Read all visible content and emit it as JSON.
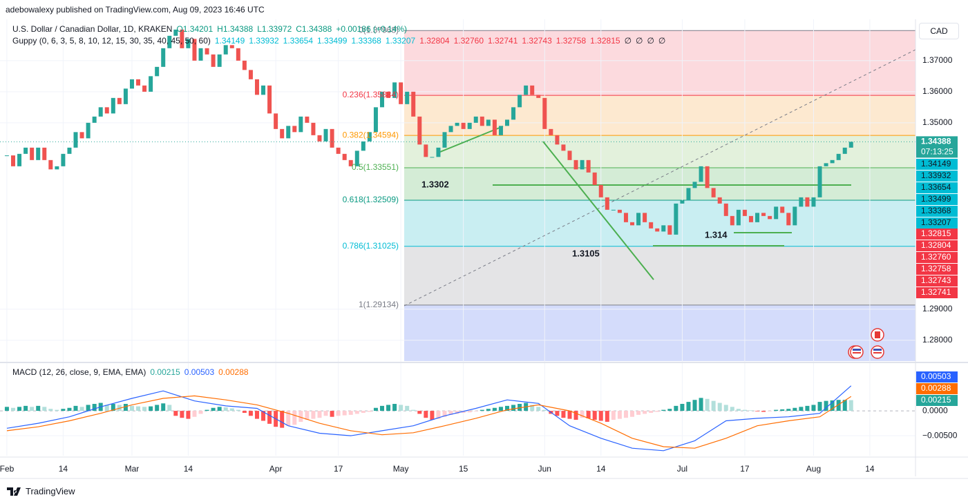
{
  "header": {
    "publisher": "adebowalexy published on TradingView.com, Aug 09, 2023 16:46 UTC"
  },
  "chart_data": {
    "type": "candlestick",
    "title": "U.S. Dollar / Canadian Dollar, 1D, KRAKEN",
    "ohlc_legend": {
      "open": "O1.34201",
      "high": "H1.34388",
      "low": "L1.33972",
      "close": "C1.34388",
      "change": "+0.00186 (+0.14%)"
    },
    "currency": "CAD",
    "countdown": "07:13:25",
    "up_color": "#26a69a",
    "down_color": "#ef5350",
    "grid": true,
    "values": [
      1.3395,
      1.336,
      1.34,
      1.342,
      1.338,
      1.342,
      1.338,
      1.335,
      1.336,
      1.34,
      1.342,
      1.347,
      1.345,
      1.35,
      1.352,
      1.355,
      1.353,
      1.358,
      1.356,
      1.361,
      1.364,
      1.362,
      1.36,
      1.365,
      1.368,
      1.374,
      1.378,
      1.38,
      1.374,
      1.377,
      1.37,
      1.374,
      1.372,
      1.368,
      1.372,
      1.375,
      1.374,
      1.37,
      1.367,
      1.364,
      1.359,
      1.362,
      1.353,
      1.348,
      1.345,
      1.349,
      1.347,
      1.352,
      1.35,
      1.346,
      1.344,
      1.348,
      1.342,
      1.34,
      1.338,
      1.336,
      1.341,
      1.344,
      1.347,
      1.355,
      1.36,
      1.358,
      1.363,
      1.356,
      1.36,
      1.352,
      1.343,
      1.339,
      1.339,
      1.342,
      1.347,
      1.349,
      1.35,
      1.348,
      1.35,
      1.352,
      1.349,
      1.351,
      1.346,
      1.349,
      1.351,
      1.355,
      1.359,
      1.362,
      1.359,
      1.358,
      1.348,
      1.346,
      1.343,
      1.341,
      1.338,
      1.335,
      1.338,
      1.334,
      1.33,
      1.326,
      1.322,
      1.322,
      1.321,
      1.318,
      1.317,
      1.321,
      1.318,
      1.316,
      1.315,
      1.317,
      1.314,
      1.324,
      1.325,
      1.329,
      1.331,
      1.336,
      1.329,
      1.326,
      1.324,
      1.32,
      1.317,
      1.322,
      1.32,
      1.318,
      1.321,
      1.32,
      1.319,
      1.323,
      1.321,
      1.317,
      1.323,
      1.326,
      1.323,
      1.326,
      1.336,
      1.337,
      1.338,
      1.34,
      1.342,
      1.34388
    ],
    "xlim": [
      -1.1,
      145.3
    ],
    "xticks": [
      {
        "value": 0,
        "label": "Feb"
      },
      {
        "value": 9,
        "label": "14"
      },
      {
        "value": 20,
        "label": "Mar"
      },
      {
        "value": 29,
        "label": "14"
      },
      {
        "value": 43,
        "label": "Apr"
      },
      {
        "value": 53,
        "label": "17"
      },
      {
        "value": 63,
        "label": "May"
      },
      {
        "value": 73,
        "label": "15"
      },
      {
        "value": 86,
        "label": "Jun"
      },
      {
        "value": 95,
        "label": "14"
      },
      {
        "value": 108,
        "label": "Jul"
      },
      {
        "value": 118,
        "label": "17"
      },
      {
        "value": 129,
        "label": "Aug"
      },
      {
        "value": 138,
        "label": "14"
      }
    ],
    "ylim": [
      1.2733,
      1.3833
    ],
    "yticks": [
      {
        "value": 1.28,
        "label": "1.28000"
      },
      {
        "value": 1.29,
        "label": "1.29000"
      },
      {
        "value": 1.35,
        "label": "1.35000"
      },
      {
        "value": 1.36,
        "label": "1.36000"
      },
      {
        "value": 1.37,
        "label": "1.37000"
      }
    ],
    "guppy": {
      "label": "Guppy (0, 6, 3, 5, 8, 10, 12, 15, 30, 35, 40, 45, 50, 60)",
      "fast": [
        "1.34149",
        "1.33932",
        "1.33654",
        "1.33499",
        "1.33368",
        "1.33207"
      ],
      "slow": [
        "1.32804",
        "1.32760",
        "1.32741",
        "1.32743",
        "1.32758",
        "1.32815"
      ],
      "na": [
        "∅",
        "∅",
        "∅",
        "∅"
      ],
      "fast_color": "#00bcd4",
      "slow_color": "#f23645"
    },
    "fib": {
      "levels": [
        {
          "value": 1.37968,
          "label": "0(1.37968)"
        },
        {
          "value": 1.35884,
          "label": "0.236(1.35884)"
        },
        {
          "value": 1.34594,
          "label": "0.382(1.34594)"
        },
        {
          "value": 1.33551,
          "label": "0.5(1.33551)"
        },
        {
          "value": 1.32509,
          "label": "0.618(1.32509)"
        },
        {
          "value": 1.31025,
          "label": "0.786(1.31025)"
        },
        {
          "value": 1.29134,
          "label": "1(1.29134)"
        }
      ],
      "line_colors": [
        "#787b86",
        "#f23645",
        "#ff9800",
        "#4caf50",
        "#089981",
        "#00bcd4",
        "#787b86"
      ],
      "zone_colors": [
        "#fcdade",
        "#fde9d0",
        "#e3f1dc",
        "#d4ecd6",
        "#c9eef2",
        "#e4e4e6",
        "#d4dcfb"
      ]
    },
    "annotations": [
      "1.3302",
      "1.3105",
      "1.314"
    ],
    "macd": {
      "title": "MACD (12, 26, close, 9, EMA, EMA)",
      "legend_values": [
        "0.00215",
        "0.00503",
        "0.00288"
      ],
      "histogram": [
        0.0008,
        0.0006,
        0.0008,
        0.001,
        0.0008,
        0.001,
        0.0008,
        0.0004,
        0.0002,
        0.0004,
        0.0006,
        0.001,
        0.0008,
        0.0012,
        0.0014,
        0.0016,
        0.0012,
        0.0014,
        0.0012,
        0.0014,
        0.001,
        0.0009,
        0.0008,
        0.0009,
        0.0012,
        0.0015,
        0.0012,
        -0.001,
        -0.0014,
        -0.0016,
        -0.0012,
        -0.0006,
        0.0002,
        0.0006,
        0.0008,
        0.0007,
        0.0005,
        0.0002,
        -0.0004,
        -0.001,
        -0.0016,
        -0.002,
        -0.0026,
        -0.0032,
        -0.0034,
        -0.003,
        -0.0028,
        -0.0022,
        -0.0018,
        -0.0016,
        -0.0014,
        -0.001,
        -0.0012,
        -0.001,
        -0.0009,
        -0.0008,
        -0.0006,
        -0.0004,
        -0.0002,
        0.0006,
        0.001,
        0.0012,
        0.0014,
        0.0012,
        0.001,
        0.0002,
        -0.0006,
        -0.0014,
        -0.0018,
        -0.0016,
        -0.0012,
        -0.0008,
        -0.0006,
        -0.0004,
        -0.0003,
        -0.0001,
        0.0002,
        0.0004,
        0.0006,
        0.0008,
        0.001,
        0.0012,
        0.0014,
        0.0016,
        0.0012,
        0.0008,
        0.0002,
        -0.0006,
        -0.001,
        -0.0014,
        -0.0016,
        -0.0018,
        -0.0014,
        -0.0015,
        -0.0018,
        -0.002,
        -0.0022,
        -0.0018,
        -0.0016,
        -0.0014,
        -0.0012,
        -0.0008,
        -0.0006,
        -0.0004,
        -0.0002,
        0.0002,
        0.0004,
        0.001,
        0.0014,
        0.0018,
        0.0022,
        0.0026,
        0.0024,
        0.002,
        0.0016,
        0.0012,
        0.0008,
        0.0004,
        0.0002,
        0.0001,
        -0.0001,
        -0.0002,
        -0.0001,
        0.0002,
        0.0003,
        0.0004,
        0.0006,
        0.0008,
        0.001,
        0.0012,
        0.0018,
        0.002,
        0.0021,
        0.0022,
        0.0022,
        0.00215
      ],
      "hist_colors": {
        "pos_up": "#26a69a",
        "pos_down": "#b2dfdb",
        "neg_down": "#ff5252",
        "neg_up": "#ffcdd2"
      },
      "x": [
        0,
        5,
        10,
        15,
        20,
        25,
        30,
        35,
        40,
        45,
        50,
        55,
        60,
        65,
        70,
        75,
        80,
        85,
        90,
        95,
        100,
        105,
        110,
        115,
        120,
        125,
        130,
        135
      ],
      "macd": [
        -0.0035,
        -0.0025,
        -0.0012,
        0.0008,
        0.0025,
        0.004,
        0.002,
        0.001,
        0.0005,
        -0.003,
        -0.0045,
        -0.005,
        -0.004,
        -0.003,
        -0.001,
        0.0005,
        0.0022,
        0.0015,
        -0.003,
        -0.0055,
        -0.0075,
        -0.008,
        -0.006,
        -0.002,
        -0.0015,
        -0.0012,
        -0.0005,
        0.00503
      ],
      "signal": [
        -0.004,
        -0.0032,
        -0.002,
        -0.0005,
        0.0012,
        0.0025,
        0.003,
        0.0022,
        0.0012,
        -0.0005,
        -0.0025,
        -0.004,
        -0.0048,
        -0.0044,
        -0.003,
        -0.0015,
        0.0002,
        0.0012,
        0.0,
        -0.0025,
        -0.0055,
        -0.0072,
        -0.0075,
        -0.0055,
        -0.003,
        -0.002,
        -0.0012,
        0.00288
      ],
      "hist_color": "#26a69a",
      "macd_color": "#2962ff",
      "signal_color": "#ff6d00",
      "ylim": [
        -0.009,
        0.0093
      ],
      "yticks": [
        {
          "value": 0,
          "label": "0.0000"
        },
        {
          "value": -0.005,
          "label": "−0.00500"
        }
      ]
    }
  },
  "footer": {
    "brand": "TradingView"
  }
}
